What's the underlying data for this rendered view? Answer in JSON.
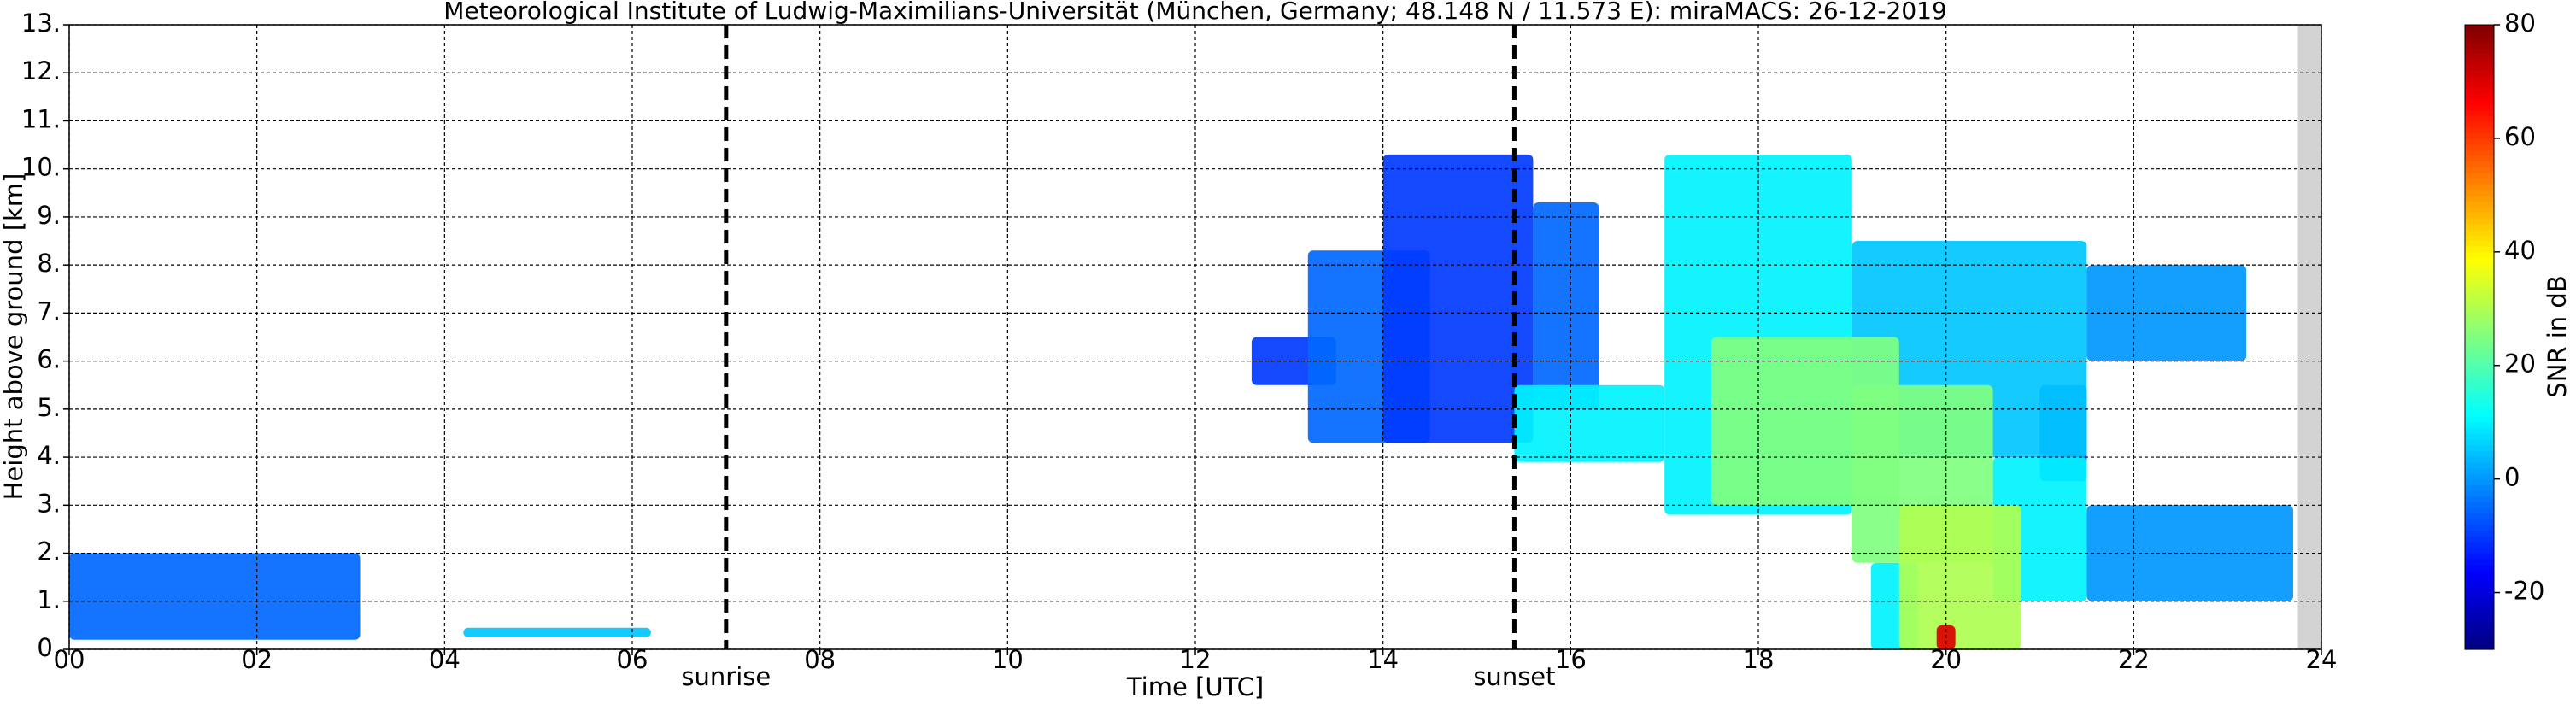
{
  "chart_data": {
    "type": "radar-time-height",
    "title": "Meteorological Institute of Ludwig-Maximilians-Universität (München, Germany; 48.148 N / 11.573 E):    miraMACS: 26-12-2019",
    "xlabel": "Time [UTC]",
    "ylabel": "Height above ground [km]",
    "xlim": [
      0,
      24
    ],
    "xticks": [
      {
        "value": 0,
        "label": "00"
      },
      {
        "value": 2,
        "label": "02"
      },
      {
        "value": 4,
        "label": "04"
      },
      {
        "value": 6,
        "label": "06"
      },
      {
        "value": 8,
        "label": "08"
      },
      {
        "value": 10,
        "label": "10"
      },
      {
        "value": 12,
        "label": "12"
      },
      {
        "value": 14,
        "label": "14"
      },
      {
        "value": 16,
        "label": "16"
      },
      {
        "value": 18,
        "label": "18"
      },
      {
        "value": 20,
        "label": "20"
      },
      {
        "value": 22,
        "label": "22"
      },
      {
        "value": 24,
        "label": "24"
      }
    ],
    "ylim": [
      0,
      13
    ],
    "yticks": [
      {
        "value": 0,
        "label": "0."
      },
      {
        "value": 1,
        "label": "1."
      },
      {
        "value": 2,
        "label": "2."
      },
      {
        "value": 3,
        "label": "3."
      },
      {
        "value": 4,
        "label": "4."
      },
      {
        "value": 5,
        "label": "5."
      },
      {
        "value": 6,
        "label": "6."
      },
      {
        "value": 7,
        "label": "7."
      },
      {
        "value": 8,
        "label": "8."
      },
      {
        "value": 9,
        "label": "9."
      },
      {
        "value": 10,
        "label": "10."
      },
      {
        "value": 11,
        "label": "11."
      },
      {
        "value": 12,
        "label": "12."
      },
      {
        "value": 13,
        "label": "13."
      }
    ],
    "grid": true,
    "colormap": "jet",
    "colorbar_label": "SNR in dB",
    "clim": [
      -30,
      80
    ],
    "colorbar_ticks": [
      -20,
      0,
      20,
      40,
      60,
      80
    ],
    "no_data": [
      23.75,
      24
    ],
    "events": [
      {
        "x": 7.0,
        "label": "sunrise"
      },
      {
        "x": 15.4,
        "label": "sunset"
      }
    ],
    "cells": [
      {
        "x": [
          0,
          3.1
        ],
        "y": [
          0.2,
          2.0
        ],
        "snr": -5
      },
      {
        "x": [
          4.2,
          6.2
        ],
        "y": [
          0.25,
          0.45
        ],
        "snr": 5
      },
      {
        "x": [
          12.6,
          13.5
        ],
        "y": [
          5.5,
          6.5
        ],
        "snr": -10
      },
      {
        "x": [
          13.2,
          14.5
        ],
        "y": [
          4.3,
          8.3
        ],
        "snr": -5
      },
      {
        "x": [
          14.0,
          15.6
        ],
        "y": [
          4.3,
          10.3
        ],
        "snr": -10
      },
      {
        "x": [
          15.6,
          16.3
        ],
        "y": [
          5.0,
          9.3
        ],
        "snr": -5
      },
      {
        "x": [
          21.5,
          23.2
        ],
        "y": [
          6.0,
          8.0
        ],
        "snr": 0
      },
      {
        "x": [
          21.5,
          23.7
        ],
        "y": [
          1.0,
          3.0
        ],
        "snr": 0
      },
      {
        "x": [
          21.0,
          21.5
        ],
        "y": [
          3.5,
          5.5
        ],
        "snr": -5
      },
      {
        "x": [
          19.0,
          21.5
        ],
        "y": [
          4.0,
          8.5
        ],
        "snr": 5
      },
      {
        "x": [
          15.4,
          17.0
        ],
        "y": [
          3.9,
          5.5
        ],
        "snr": 10
      },
      {
        "x": [
          17.0,
          19.0
        ],
        "y": [
          2.8,
          10.3
        ],
        "snr": 10
      },
      {
        "x": [
          20.5,
          21.5
        ],
        "y": [
          1.0,
          4.0
        ],
        "snr": 10
      },
      {
        "x": [
          19.2,
          19.7
        ],
        "y": [
          0,
          1.8
        ],
        "snr": 10
      },
      {
        "x": [
          17.5,
          19.5
        ],
        "y": [
          3.0,
          6.5
        ],
        "snr": 25
      },
      {
        "x": [
          19.0,
          20.5
        ],
        "y": [
          1.8,
          5.5
        ],
        "snr": 25
      },
      {
        "x": [
          19.5,
          20.8
        ],
        "y": [
          0,
          3.0
        ],
        "snr": 30
      },
      {
        "x": [
          19.9,
          20.1
        ],
        "y": [
          0,
          0.5
        ],
        "snr": 70
      }
    ]
  }
}
